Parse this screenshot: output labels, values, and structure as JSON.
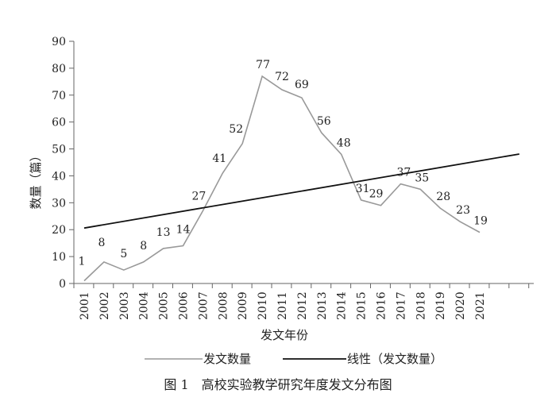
{
  "chart_data": {
    "type": "line",
    "xlabel": "发文年份",
    "ylabel": "数量（篇）",
    "categories": [
      "2001",
      "2002",
      "2003",
      "2004",
      "2005",
      "2006",
      "2007",
      "2008",
      "2009",
      "2010",
      "2011",
      "2012",
      "2013",
      "2014",
      "2015",
      "2016",
      "2017",
      "2018",
      "2019",
      "2020",
      "2021"
    ],
    "series": [
      {
        "name": "发文数量",
        "color": "#999999",
        "values": [
          1,
          8,
          5,
          8,
          13,
          14,
          27,
          41,
          52,
          77,
          72,
          69,
          56,
          48,
          31,
          29,
          37,
          35,
          28,
          23,
          19
        ],
        "labels": [
          "1",
          "8",
          "5",
          "8",
          "13",
          "14",
          "27",
          "41",
          "52",
          "77",
          "72",
          "69",
          "56",
          "48",
          "31",
          "29",
          "37",
          "35",
          "28",
          "23",
          "19"
        ],
        "show_markers": false
      },
      {
        "name": "线性（发文数量）",
        "color": "#111111",
        "type": "trendline",
        "start": {
          "x": "2001",
          "y": 20.6
        },
        "end": {
          "x_index": 22.0,
          "y": 48.1
        }
      }
    ],
    "yticks": [
      "0",
      "10",
      "20",
      "30",
      "40",
      "50",
      "60",
      "70",
      "80",
      "90"
    ],
    "ylim": [
      0,
      90
    ],
    "grid": false,
    "legend": {
      "position": "bottom",
      "entries": [
        "发文数量",
        "线性（发文数量）"
      ]
    },
    "caption": "图 1　高校实验教学研究年度发文分布图"
  }
}
